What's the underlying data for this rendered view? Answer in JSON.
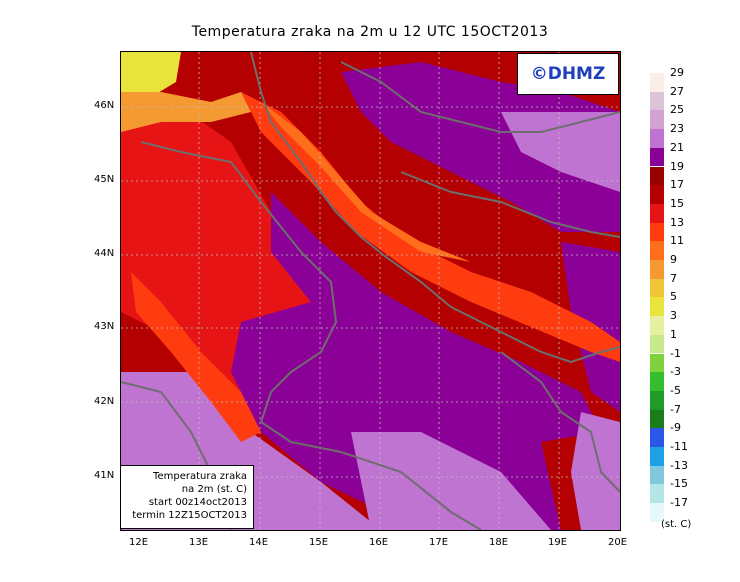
{
  "title": "Temperatura zraka na 2m u 12 UTC 15OCT2013",
  "logo": "©DHMZ",
  "info": {
    "line1": "Temperatura zraka",
    "line2": "na 2m (st. C)",
    "line3": "start 00z14oct2013",
    "line4": "termin 12Z15OCT2013"
  },
  "lat_labels": [
    "46N",
    "45N",
    "44N",
    "43N",
    "42N",
    "41N"
  ],
  "lon_labels": [
    "12E",
    "13E",
    "14E",
    "15E",
    "16E",
    "17E",
    "18E",
    "19E",
    "20E"
  ],
  "legend": {
    "labels": [
      "29",
      "27",
      "25",
      "23",
      "21",
      "19",
      "17",
      "15",
      "13",
      "11",
      "9",
      "7",
      "5",
      "3",
      "1",
      "-1",
      "-3",
      "-5",
      "-7",
      "-9",
      "-11",
      "-13",
      "-15",
      "-17"
    ],
    "colors": [
      "#fbeee6",
      "#dcc3d8",
      "#d2a2d3",
      "#c074d2",
      "#8b0096",
      "#9a0000",
      "#b40000",
      "#e61414",
      "#ff3c0f",
      "#ff6e1a",
      "#f59a32",
      "#f0c437",
      "#e8e43c",
      "#e6f0a0",
      "#c8e88c",
      "#7fd23c",
      "#32be2d",
      "#1e9b28",
      "#1a7d1a",
      "#2a57e8",
      "#1ea0e6",
      "#82c8dc",
      "#b4e6e6",
      "#e6f8f8"
    ],
    "unit": "(st. C)"
  }
}
